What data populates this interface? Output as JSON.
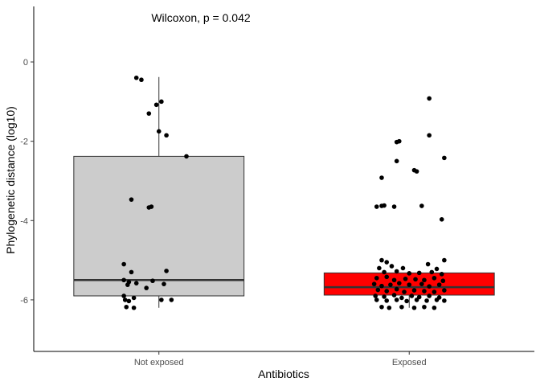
{
  "chart_data": {
    "type": "box",
    "annotation": "Wilcoxon, p = 0.042",
    "xlabel": "Antibiotics",
    "ylabel": "Phylogenetic distance (log10)",
    "ylim": [
      -7.3,
      1.4
    ],
    "yticks": [
      0,
      -2,
      -4,
      -6
    ],
    "ytick_labels": [
      "0",
      "-2",
      "-4",
      "-6"
    ],
    "grid": false,
    "categories": [
      "Not exposed",
      "Exposed"
    ],
    "groups": [
      {
        "label": "Not exposed",
        "fill": "#cccccc",
        "box": {
          "lower_whisker": -6.2,
          "q1": -5.9,
          "median": -5.5,
          "q3": -2.38,
          "upper_whisker": -0.38
        },
        "points": [
          [
            -0.18,
            -0.4
          ],
          [
            -0.14,
            -0.45
          ],
          [
            -0.02,
            -1.08
          ],
          [
            0.02,
            -1.0
          ],
          [
            -0.08,
            -1.3
          ],
          [
            0.06,
            -1.85
          ],
          [
            0.0,
            -1.75
          ],
          [
            0.22,
            -2.38
          ],
          [
            -0.22,
            -3.47
          ],
          [
            -0.06,
            -3.65
          ],
          [
            -0.08,
            -3.67
          ],
          [
            -0.28,
            -5.1
          ],
          [
            -0.22,
            -5.3
          ],
          [
            0.06,
            -5.27
          ],
          [
            -0.28,
            -5.5
          ],
          [
            -0.24,
            -5.55
          ],
          [
            -0.18,
            -5.58
          ],
          [
            -0.25,
            -5.62
          ],
          [
            -0.05,
            -5.52
          ],
          [
            0.04,
            -5.6
          ],
          [
            -0.1,
            -5.7
          ],
          [
            -0.28,
            -5.9
          ],
          [
            -0.2,
            -5.95
          ],
          [
            -0.27,
            -6.0
          ],
          [
            -0.24,
            -6.03
          ],
          [
            0.02,
            -6.0
          ],
          [
            0.1,
            -6.0
          ],
          [
            -0.26,
            -6.18
          ],
          [
            -0.2,
            -6.2
          ]
        ]
      },
      {
        "label": "Exposed",
        "fill": "#ff0000",
        "box": {
          "lower_whisker": -6.2,
          "q1": -5.88,
          "median": -5.68,
          "q3": -5.32,
          "upper_whisker": -5.32
        },
        "points": [
          [
            0.16,
            -0.92
          ],
          [
            -0.1,
            -2.02
          ],
          [
            -0.08,
            -2.0
          ],
          [
            0.16,
            -1.85
          ],
          [
            0.28,
            -2.42
          ],
          [
            -0.1,
            -2.5
          ],
          [
            0.04,
            -2.73
          ],
          [
            0.06,
            -2.76
          ],
          [
            -0.22,
            -2.92
          ],
          [
            -0.26,
            -3.65
          ],
          [
            -0.22,
            -3.63
          ],
          [
            -0.2,
            -3.62
          ],
          [
            -0.12,
            -3.65
          ],
          [
            0.1,
            -3.63
          ],
          [
            0.26,
            -3.97
          ],
          [
            -0.22,
            -5.0
          ],
          [
            -0.18,
            -5.05
          ],
          [
            0.28,
            -5.0
          ],
          [
            -0.24,
            -5.2
          ],
          [
            -0.14,
            -5.15
          ],
          [
            -0.05,
            -5.2
          ],
          [
            0.15,
            -5.1
          ],
          [
            0.22,
            -5.22
          ],
          [
            -0.2,
            -5.3
          ],
          [
            -0.1,
            -5.28
          ],
          [
            0.0,
            -5.33
          ],
          [
            0.08,
            -5.32
          ],
          [
            0.18,
            -5.3
          ],
          [
            0.26,
            -5.35
          ],
          [
            -0.26,
            -5.45
          ],
          [
            -0.18,
            -5.42
          ],
          [
            -0.12,
            -5.5
          ],
          [
            -0.03,
            -5.47
          ],
          [
            0.05,
            -5.48
          ],
          [
            0.12,
            -5.5
          ],
          [
            0.2,
            -5.45
          ],
          [
            0.27,
            -5.52
          ],
          [
            -0.28,
            -5.6
          ],
          [
            -0.22,
            -5.65
          ],
          [
            -0.15,
            -5.62
          ],
          [
            -0.08,
            -5.58
          ],
          [
            0.0,
            -5.62
          ],
          [
            0.1,
            -5.6
          ],
          [
            0.16,
            -5.66
          ],
          [
            0.24,
            -5.62
          ],
          [
            -0.25,
            -5.75
          ],
          [
            -0.18,
            -5.78
          ],
          [
            -0.1,
            -5.73
          ],
          [
            -0.04,
            -5.8
          ],
          [
            0.04,
            -5.76
          ],
          [
            0.12,
            -5.78
          ],
          [
            0.2,
            -5.8
          ],
          [
            0.28,
            -5.76
          ],
          [
            -0.27,
            -5.9
          ],
          [
            -0.2,
            -5.92
          ],
          [
            -0.12,
            -5.88
          ],
          [
            -0.06,
            -5.95
          ],
          [
            0.02,
            -5.9
          ],
          [
            0.08,
            -5.93
          ],
          [
            0.16,
            -5.9
          ],
          [
            0.24,
            -5.94
          ],
          [
            -0.26,
            -6.0
          ],
          [
            -0.18,
            -6.02
          ],
          [
            -0.1,
            -6.0
          ],
          [
            -0.02,
            -6.03
          ],
          [
            0.06,
            -6.0
          ],
          [
            0.14,
            -6.02
          ],
          [
            0.22,
            -6.0
          ],
          [
            0.28,
            -6.02
          ],
          [
            -0.22,
            -6.18
          ],
          [
            -0.16,
            -6.2
          ],
          [
            -0.06,
            -6.18
          ],
          [
            0.04,
            -6.2
          ],
          [
            0.12,
            -6.18
          ],
          [
            0.2,
            -6.2
          ]
        ]
      }
    ]
  }
}
